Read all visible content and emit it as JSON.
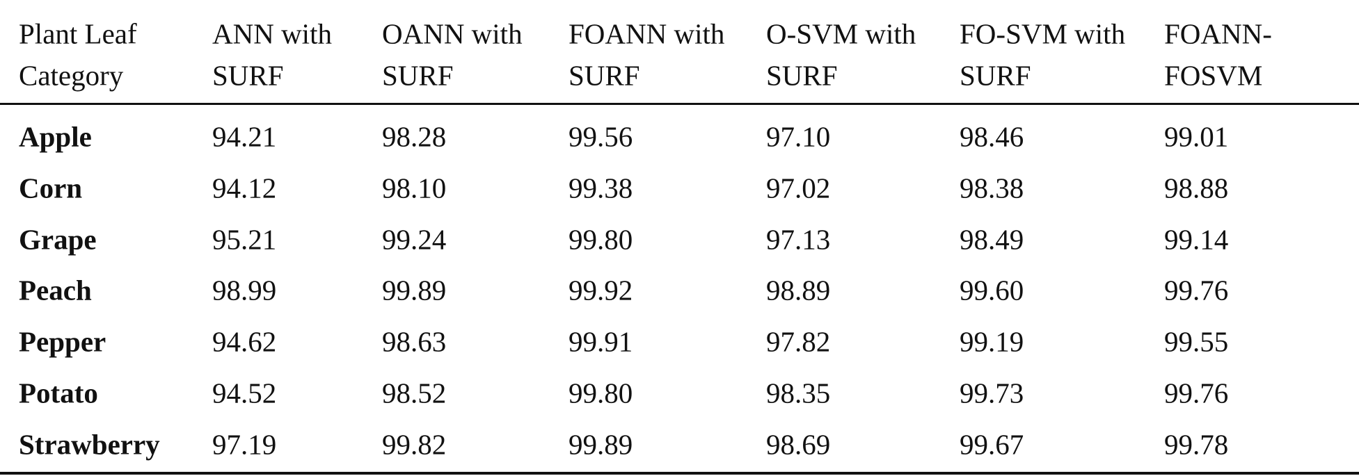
{
  "table": {
    "header": [
      [
        "Plant Leaf",
        "Category"
      ],
      [
        "ANN with",
        "SURF"
      ],
      [
        "OANN with",
        "SURF"
      ],
      [
        "FOANN with",
        "SURF"
      ],
      [
        "O-SVM with",
        "SURF"
      ],
      [
        "FO-SVM with",
        "SURF"
      ],
      [
        "FOANN-",
        "FOSVM"
      ]
    ],
    "rows": [
      [
        "Apple",
        "94.21",
        "98.28",
        "99.56",
        "97.10",
        "98.46",
        "99.01"
      ],
      [
        "Corn",
        "94.12",
        "98.10",
        "99.38",
        "97.02",
        "98.38",
        "98.88"
      ],
      [
        "Grape",
        "95.21",
        "99.24",
        "99.80",
        "97.13",
        "98.49",
        "99.14"
      ],
      [
        "Peach",
        "98.99",
        "99.89",
        "99.92",
        "98.89",
        "99.60",
        "99.76"
      ],
      [
        "Pepper",
        "94.62",
        "98.63",
        "99.91",
        "97.82",
        "99.19",
        "99.55"
      ],
      [
        "Potato",
        "94.52",
        "98.52",
        "99.80",
        "98.35",
        "99.73",
        "99.76"
      ],
      [
        "Strawberry",
        "97.19",
        "99.82",
        "99.89",
        "98.69",
        "99.67",
        "99.78"
      ]
    ]
  }
}
